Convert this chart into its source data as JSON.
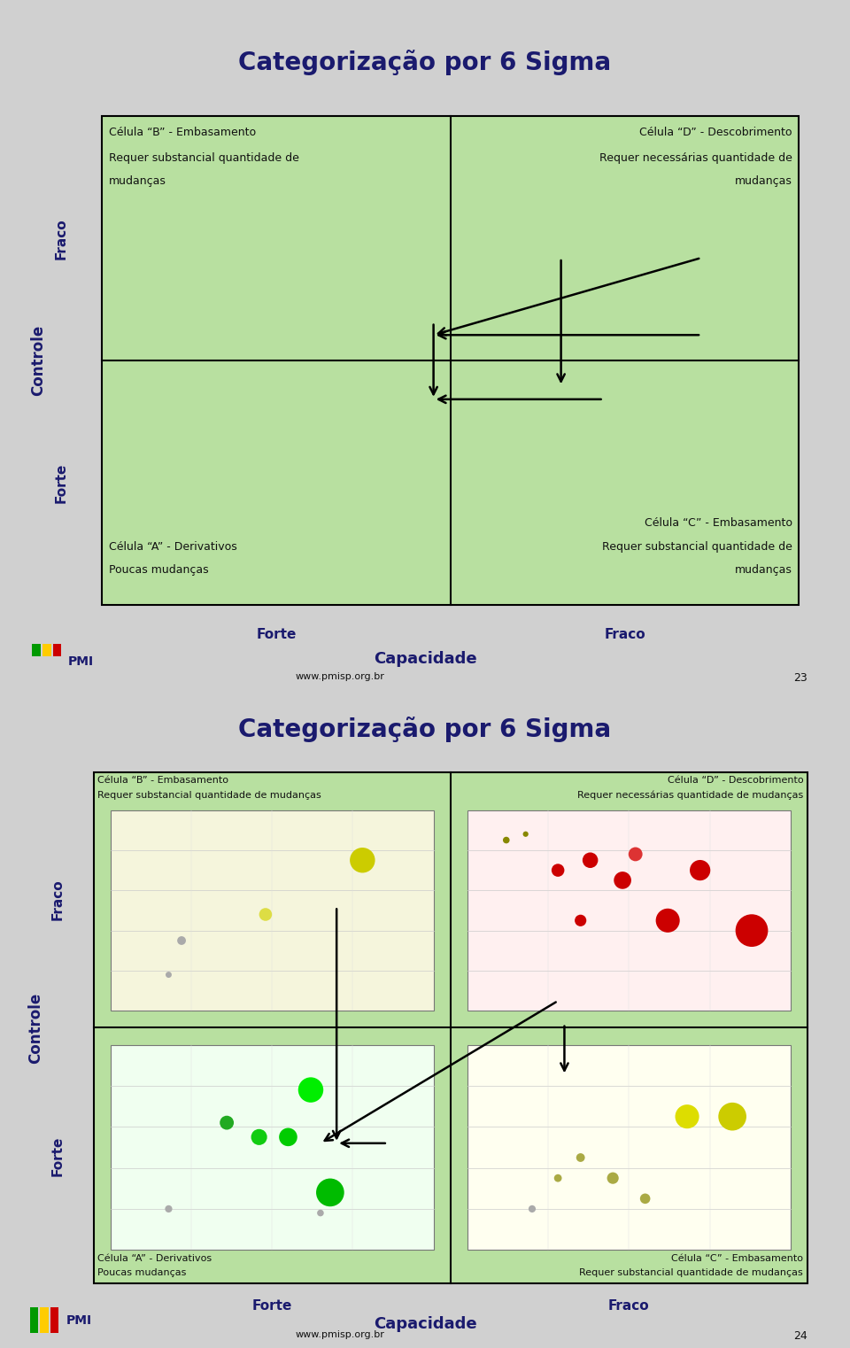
{
  "slide1": {
    "title": "Categorização por 6 Sigma",
    "bg_color": "#e8e890",
    "grid_bg": "#b8e0a0",
    "cell_B_title": "Célula “B” - Embasamento",
    "cell_B_sub": "Requer substancial quantidade de\nmudanças",
    "cell_D_title": "Célula “D” - Descobrimento",
    "cell_D_sub": "Requer necessárias quantidade de\nmudanças",
    "cell_A_title": "Célula “A” - Derivativos",
    "cell_A_sub": "Poucas mudanças",
    "cell_C_title": "Célula “C” - Embasamento",
    "cell_C_sub": "Requer substancial quantidade de\nmudanças",
    "fraco_label": "Fraco",
    "forte_label": "Forte",
    "controle_label": "Controle",
    "capacidade_label": "Capacidade",
    "forte_cap": "Forte",
    "fraco_cap": "Fraco",
    "url": "www.pmisp.org.br",
    "page_num": "23"
  },
  "slide2": {
    "title": "Categorização por 6 Sigma",
    "bg_color": "#e8e890",
    "grid_bg": "#b8e0a0",
    "cell_B_title": "Célula “B” - Embasamento",
    "cell_B_sub": "Requer substancial quantidade de mudanças",
    "cell_D_title": "Célula “D” - Descobrimento",
    "cell_D_sub": "Requer necessárias quantidade de mudanças",
    "cell_A_title": "Célula “A” - Derivativos",
    "cell_A_sub": "Poucas mudanças",
    "cell_C_title": "Célula “C” - Embasamento",
    "cell_C_sub": "Requer substancial quantidade de mudanças",
    "fraco_label": "Fraco",
    "forte_label": "Forte",
    "controle_label": "Controle",
    "capacidade_label": "Capacidade",
    "forte_cap": "Forte",
    "fraco_cap": "Fraco",
    "url": "www.pmisp.org.br",
    "page_num": "24"
  },
  "gap_color": "#d0d0d0",
  "title_color": "#1a1a6e",
  "text_color": "#111111",
  "label_color": "#1a1a6e"
}
